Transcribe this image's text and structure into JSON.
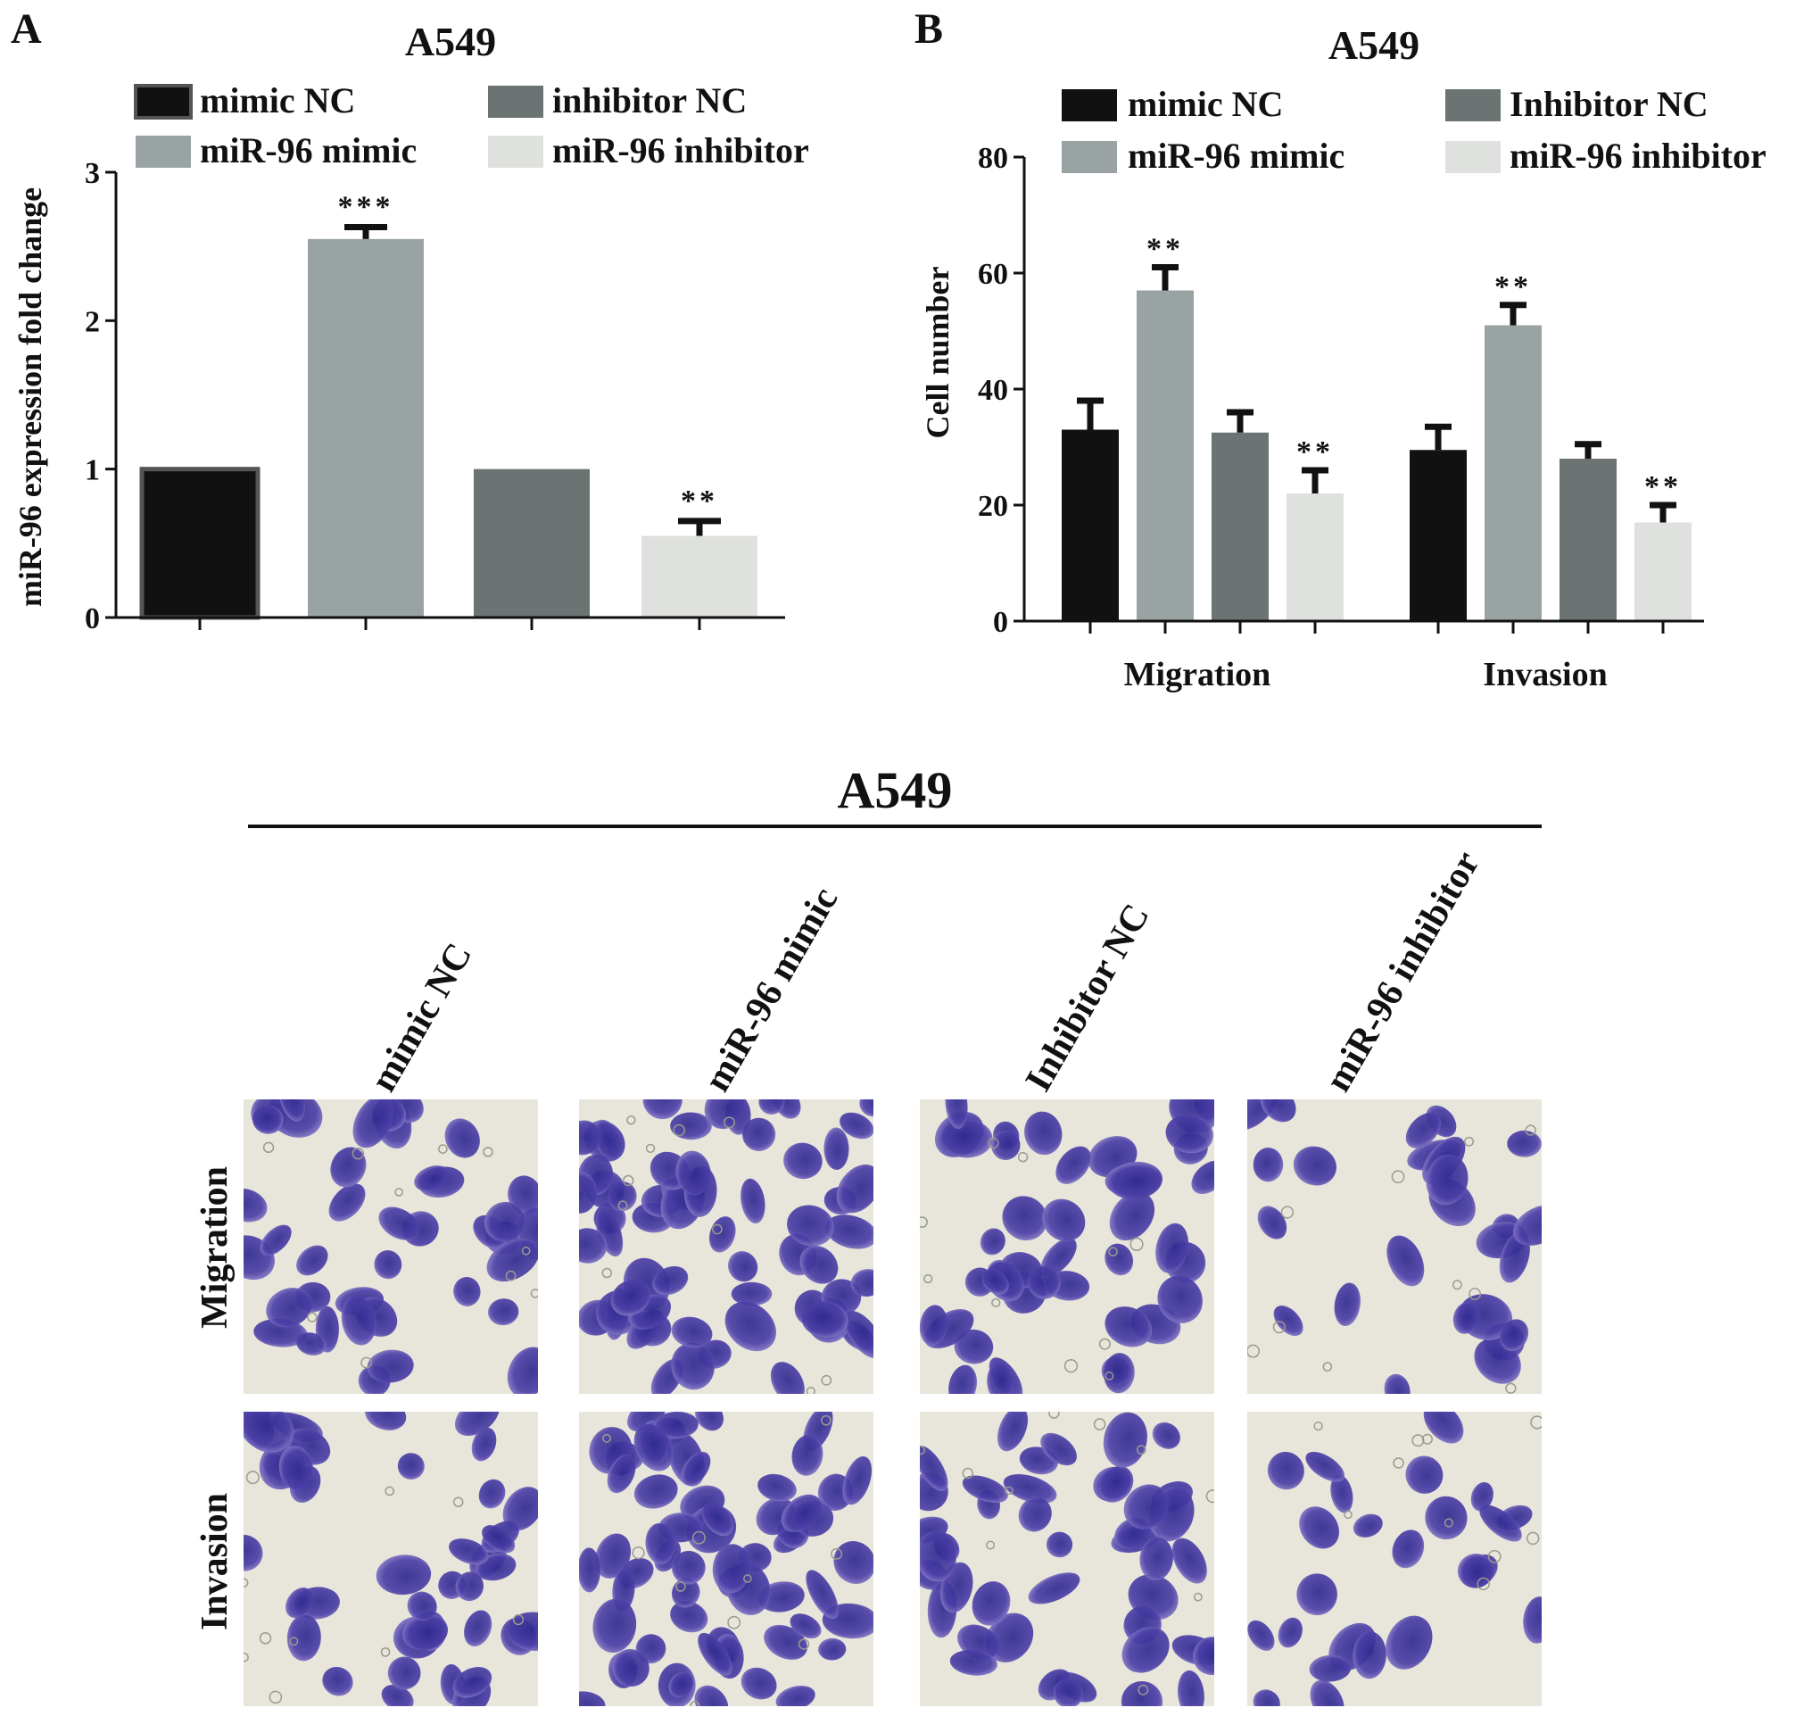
{
  "chart_data": [
    {
      "panel": "A",
      "type": "bar",
      "title": "A549",
      "xlabel": "",
      "ylabel": "miR-96 expression fold change",
      "ylim": [
        0,
        3
      ],
      "yticks": [
        0,
        1,
        2,
        3
      ],
      "legend": [
        "mimic NC",
        "inhibitor NC",
        "miR-96 mimic",
        "miR-96 inhibitor"
      ],
      "legend_placement": "top",
      "categories": [
        "mimic NC",
        "miR-96 mimic",
        "inhibitor NC",
        "miR-96 inhibitor"
      ],
      "values": [
        1.0,
        2.55,
        1.0,
        0.55
      ],
      "errors": [
        0.0,
        0.08,
        0.0,
        0.1
      ],
      "significance": [
        "",
        "***",
        "",
        "**"
      ]
    },
    {
      "panel": "B",
      "type": "bar",
      "title": "A549",
      "xlabel": "",
      "ylabel": "Cell number",
      "ylim": [
        0,
        80
      ],
      "yticks": [
        0,
        20,
        40,
        60,
        80
      ],
      "legend": [
        "mimic NC",
        "Inhibitor NC",
        "miR-96 mimic",
        "miR-96 inhibitor"
      ],
      "legend_placement": "top",
      "categories": [
        "Migration",
        "Invasion"
      ],
      "series": [
        {
          "name": "mimic NC",
          "values": [
            33,
            29.5
          ],
          "errors": [
            5,
            4
          ],
          "significance": [
            "",
            ""
          ]
        },
        {
          "name": "miR-96 mimic",
          "values": [
            57,
            51
          ],
          "errors": [
            4,
            3.5
          ],
          "significance": [
            "**",
            "**"
          ]
        },
        {
          "name": "Inhibitor NC",
          "values": [
            32.5,
            28
          ],
          "errors": [
            3.5,
            2.5
          ],
          "significance": [
            "",
            ""
          ]
        },
        {
          "name": "miR-96 inhibitor",
          "values": [
            22,
            17
          ],
          "errors": [
            4,
            3
          ],
          "significance": [
            "**",
            "**"
          ]
        }
      ]
    }
  ],
  "colors": {
    "mimic_nc": "#111111",
    "mimic": "#9aa3a4",
    "inhibitor_nc": "#6b7373",
    "inhibitor": "#dfe1de",
    "cell_stain": "#4c3fa6",
    "cell_bg": "#e8e6da"
  },
  "micrographs": {
    "title": "A549",
    "columns": [
      "mimic NC",
      "miR-96 mimic",
      "Inhibitor NC",
      "miR-96 inhibitor"
    ],
    "rows": [
      "Migration",
      "Invasion"
    ],
    "density": [
      [
        0.55,
        0.85,
        0.6,
        0.35
      ],
      [
        0.55,
        0.85,
        0.6,
        0.35
      ]
    ]
  }
}
